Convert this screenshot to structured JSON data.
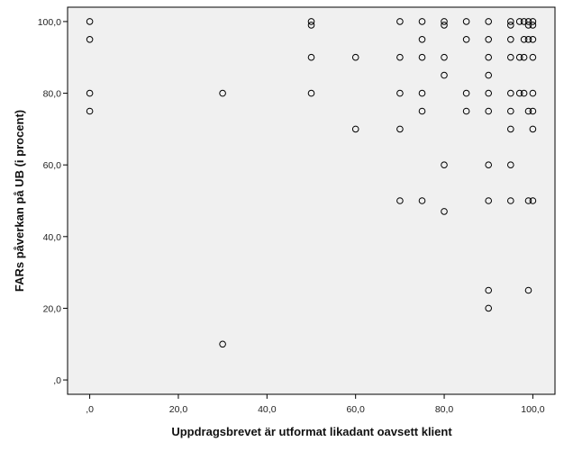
{
  "chart_data": {
    "type": "scatter",
    "title": "",
    "xlabel": "Uppdragsbrevet är utformat likadant oavsett klient",
    "ylabel": "FARs påverkan på UB (i procent)",
    "xlim": [
      -5,
      105
    ],
    "ylim": [
      -4,
      104
    ],
    "xticks": [
      0,
      20,
      40,
      60,
      80,
      100
    ],
    "xtick_labels": [
      ",0",
      "20,0",
      "40,0",
      "60,0",
      "80,0",
      "100,0"
    ],
    "yticks": [
      0,
      20,
      40,
      60,
      80,
      100
    ],
    "ytick_labels": [
      ",0",
      "20,0",
      "40,0",
      "60,0",
      "80,0",
      "100,0"
    ],
    "grid": false,
    "background_color": "#f0f0f0",
    "marker": "open-circle",
    "points": [
      [
        0,
        100
      ],
      [
        0,
        95
      ],
      [
        0,
        80
      ],
      [
        0,
        75
      ],
      [
        30,
        80
      ],
      [
        30,
        10
      ],
      [
        50,
        100
      ],
      [
        50,
        99
      ],
      [
        50,
        90
      ],
      [
        50,
        80
      ],
      [
        60,
        90
      ],
      [
        60,
        70
      ],
      [
        70,
        100
      ],
      [
        70,
        90
      ],
      [
        70,
        80
      ],
      [
        70,
        70
      ],
      [
        70,
        50
      ],
      [
        75,
        100
      ],
      [
        75,
        95
      ],
      [
        75,
        90
      ],
      [
        75,
        80
      ],
      [
        75,
        75
      ],
      [
        75,
        50
      ],
      [
        80,
        100
      ],
      [
        80,
        99
      ],
      [
        80,
        90
      ],
      [
        80,
        85
      ],
      [
        80,
        60
      ],
      [
        80,
        47
      ],
      [
        85,
        100
      ],
      [
        85,
        95
      ],
      [
        85,
        80
      ],
      [
        85,
        75
      ],
      [
        90,
        100
      ],
      [
        90,
        95
      ],
      [
        90,
        90
      ],
      [
        90,
        85
      ],
      [
        90,
        80
      ],
      [
        90,
        75
      ],
      [
        90,
        60
      ],
      [
        90,
        50
      ],
      [
        90,
        25
      ],
      [
        90,
        20
      ],
      [
        95,
        100
      ],
      [
        95,
        99
      ],
      [
        95,
        95
      ],
      [
        95,
        90
      ],
      [
        95,
        80
      ],
      [
        95,
        75
      ],
      [
        95,
        70
      ],
      [
        95,
        60
      ],
      [
        95,
        50
      ],
      [
        97,
        100
      ],
      [
        97,
        90
      ],
      [
        97,
        80
      ],
      [
        98,
        100
      ],
      [
        98,
        95
      ],
      [
        98,
        90
      ],
      [
        98,
        80
      ],
      [
        99,
        100
      ],
      [
        99,
        99
      ],
      [
        99,
        95
      ],
      [
        99,
        75
      ],
      [
        99,
        50
      ],
      [
        99,
        25
      ],
      [
        100,
        100
      ],
      [
        100,
        99
      ],
      [
        100,
        95
      ],
      [
        100,
        90
      ],
      [
        100,
        80
      ],
      [
        100,
        75
      ],
      [
        100,
        70
      ],
      [
        100,
        50
      ]
    ]
  }
}
